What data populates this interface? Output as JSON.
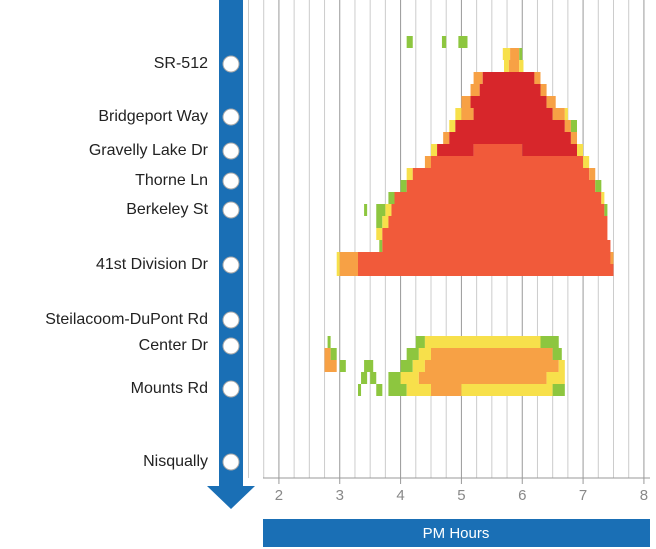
{
  "chart_data": {
    "type": "heatmap",
    "x_label": "PM Hours",
    "stations": [
      "SR-512",
      "Bridgeport Way",
      "Gravelly Lake Dr",
      "Thorne Ln",
      "Berkeley St",
      "41st Division Dr",
      "Steilacoom-DuPont Rd",
      "Center Dr",
      "Mounts Rd",
      "Nisqually"
    ],
    "xlim": [
      1.5,
      8.1
    ],
    "xticks": [
      2,
      3,
      4,
      5,
      6,
      7,
      8
    ],
    "xgrid": [
      1.5,
      1.75,
      2,
      2.25,
      2.5,
      2.75,
      3,
      3.25,
      3.5,
      3.75,
      4,
      4.25,
      4.5,
      4.75,
      5,
      5.25,
      5.5,
      5.75,
      6,
      6.25,
      6.5,
      6.75,
      7,
      7.25,
      7.5,
      7.75,
      8
    ],
    "level_colors": [
      "#8dc63f",
      "#f7e04b",
      "#f7a145",
      "#f15a3a",
      "#d7262b"
    ],
    "rows": [
      [
        [
          4.1,
          4.2,
          1
        ],
        [
          4.68,
          4.75,
          1
        ],
        [
          4.95,
          5.1,
          1
        ]
      ],
      [
        [
          5.68,
          5.8,
          2
        ],
        [
          5.8,
          5.95,
          3
        ],
        [
          5.95,
          6.0,
          1
        ]
      ],
      [
        [
          5.7,
          5.78,
          2
        ],
        [
          5.78,
          5.95,
          3
        ],
        [
          5.95,
          6.02,
          2
        ]
      ],
      [
        [
          5.2,
          5.35,
          3
        ],
        [
          5.35,
          6.2,
          5
        ],
        [
          6.2,
          6.3,
          3
        ]
      ],
      [
        [
          5.15,
          5.3,
          3
        ],
        [
          5.3,
          6.3,
          5
        ],
        [
          6.3,
          6.4,
          3
        ]
      ],
      [
        [
          5.0,
          5.15,
          3
        ],
        [
          5.15,
          6.4,
          5
        ],
        [
          6.4,
          6.55,
          3
        ]
      ],
      [
        [
          4.9,
          5.0,
          2
        ],
        [
          5.0,
          5.2,
          3
        ],
        [
          5.2,
          6.5,
          5
        ],
        [
          6.5,
          6.7,
          3
        ],
        [
          6.7,
          6.75,
          2
        ]
      ],
      [
        [
          4.8,
          4.9,
          2
        ],
        [
          4.9,
          6.7,
          5
        ],
        [
          6.7,
          6.8,
          3
        ],
        [
          6.8,
          6.9,
          1
        ]
      ],
      [
        [
          4.7,
          4.8,
          3
        ],
        [
          4.8,
          6.8,
          5
        ],
        [
          6.8,
          6.9,
          3
        ]
      ],
      [
        [
          4.5,
          4.6,
          2
        ],
        [
          4.6,
          5.2,
          5
        ],
        [
          5.2,
          6.0,
          4
        ],
        [
          6.0,
          6.9,
          5
        ],
        [
          6.9,
          7.0,
          2
        ]
      ],
      [
        [
          4.4,
          4.5,
          3
        ],
        [
          4.5,
          7.0,
          4
        ],
        [
          7.0,
          7.1,
          2
        ]
      ],
      [
        [
          4.1,
          4.2,
          2
        ],
        [
          4.2,
          7.1,
          4
        ],
        [
          7.1,
          7.2,
          3
        ]
      ],
      [
        [
          4.0,
          4.1,
          1
        ],
        [
          4.1,
          7.2,
          4
        ],
        [
          7.2,
          7.3,
          1
        ]
      ],
      [
        [
          3.8,
          3.9,
          1
        ],
        [
          3.9,
          7.3,
          4
        ],
        [
          7.3,
          7.35,
          2
        ]
      ],
      [
        [
          3.4,
          3.45,
          1
        ],
        [
          3.6,
          3.75,
          1
        ],
        [
          3.75,
          3.85,
          2
        ],
        [
          3.85,
          7.35,
          4
        ],
        [
          7.35,
          7.4,
          1
        ]
      ],
      [
        [
          3.6,
          3.7,
          1
        ],
        [
          3.7,
          3.8,
          2
        ],
        [
          3.8,
          7.4,
          4
        ]
      ],
      [
        [
          3.6,
          3.7,
          2
        ],
        [
          3.7,
          7.4,
          4
        ]
      ],
      [
        [
          3.65,
          3.7,
          1
        ],
        [
          3.7,
          7.45,
          4
        ]
      ],
      [
        [
          2.95,
          3.0,
          2
        ],
        [
          3.0,
          3.3,
          3
        ],
        [
          3.3,
          7.45,
          4
        ],
        [
          7.45,
          7.5,
          3
        ]
      ],
      [
        [
          2.95,
          3.0,
          2
        ],
        [
          3.0,
          3.3,
          3
        ],
        [
          3.3,
          7.5,
          4
        ]
      ],
      [],
      [],
      [],
      [],
      [],
      [
        [
          2.8,
          2.85,
          1
        ],
        [
          4.25,
          4.4,
          1
        ],
        [
          4.4,
          6.3,
          2
        ],
        [
          6.3,
          6.6,
          1
        ]
      ],
      [
        [
          2.75,
          2.85,
          3
        ],
        [
          2.85,
          2.95,
          1
        ],
        [
          4.1,
          4.3,
          1
        ],
        [
          4.3,
          4.5,
          2
        ],
        [
          4.5,
          6.5,
          3
        ],
        [
          6.5,
          6.65,
          1
        ]
      ],
      [
        [
          2.75,
          2.95,
          3
        ],
        [
          3.0,
          3.1,
          1
        ],
        [
          3.4,
          3.55,
          1
        ],
        [
          4.0,
          4.2,
          1
        ],
        [
          4.2,
          4.4,
          2
        ],
        [
          4.4,
          6.6,
          3
        ],
        [
          6.6,
          6.7,
          2
        ]
      ],
      [
        [
          3.35,
          3.45,
          1
        ],
        [
          3.5,
          3.6,
          1
        ],
        [
          3.8,
          4.0,
          1
        ],
        [
          4.0,
          4.3,
          2
        ],
        [
          4.3,
          6.4,
          3
        ],
        [
          6.4,
          6.7,
          2
        ]
      ],
      [
        [
          3.3,
          3.35,
          1
        ],
        [
          3.6,
          3.7,
          1
        ],
        [
          3.8,
          4.1,
          1
        ],
        [
          4.1,
          4.5,
          2
        ],
        [
          4.5,
          5.0,
          3
        ],
        [
          5.0,
          6.5,
          2
        ],
        [
          6.5,
          6.7,
          1
        ]
      ]
    ]
  }
}
